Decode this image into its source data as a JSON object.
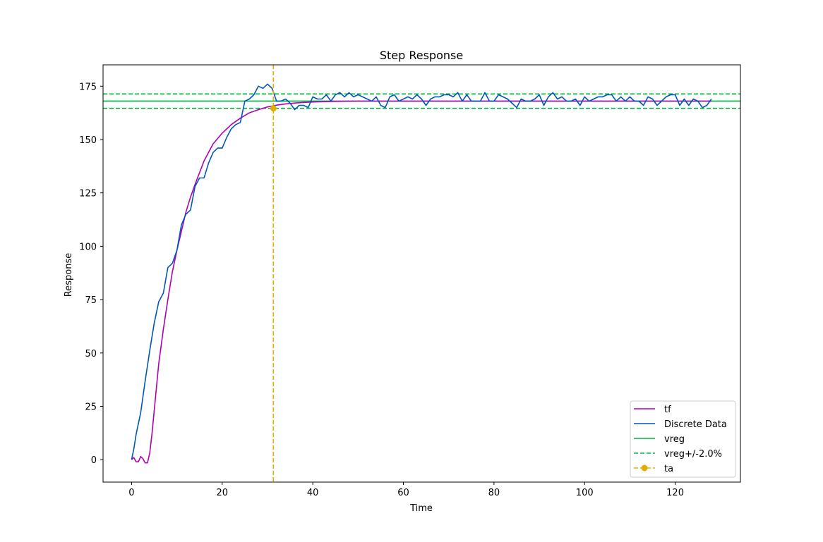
{
  "chart_data": {
    "type": "line",
    "title": "Step Response",
    "xlabel": "Time",
    "ylabel": "Response",
    "xlim": [
      -6.3,
      134.4
    ],
    "ylim": [
      -10.5,
      185
    ],
    "xticks": [
      0,
      20,
      40,
      60,
      80,
      100,
      120
    ],
    "yticks": [
      0,
      25,
      50,
      75,
      100,
      125,
      150,
      175
    ],
    "grid": false,
    "legend_placement": "lower-right",
    "series": [
      {
        "name": "tf",
        "style": "solid",
        "color": "#b000b5",
        "x": [
          0,
          0.5,
          1,
          1.5,
          2,
          2.5,
          3,
          3.5,
          4,
          4.5,
          5,
          5.5,
          6,
          7,
          8,
          9,
          10,
          11,
          12,
          13,
          14,
          16,
          18,
          20,
          22,
          24,
          26,
          28,
          30,
          32,
          34,
          36,
          38,
          40,
          45,
          50,
          55,
          60,
          70,
          80,
          90,
          100,
          110,
          120,
          128
        ],
        "y": [
          0,
          1,
          -1,
          -1,
          1.5,
          0.5,
          -1.5,
          -1.5,
          3,
          12,
          23,
          34,
          45,
          61,
          75,
          88,
          98,
          107,
          116,
          123,
          129,
          140,
          148,
          153,
          157,
          160,
          162.5,
          164,
          165.3,
          166.1,
          166.7,
          167.1,
          167.4,
          167.6,
          167.9,
          168,
          168,
          168,
          168,
          168,
          168,
          168,
          168,
          168,
          168
        ]
      },
      {
        "name": "Discrete Data",
        "style": "solid",
        "color": "#0057b8",
        "x": [
          0,
          0.5,
          1,
          2,
          3,
          4,
          5,
          6,
          7,
          8,
          9,
          10,
          11,
          12,
          13,
          14,
          15,
          16,
          17,
          18,
          19,
          20,
          21,
          22,
          23,
          24,
          25,
          26,
          27,
          28,
          29,
          30,
          31,
          32,
          33,
          34,
          35,
          36,
          37,
          38,
          39,
          40,
          41,
          42,
          43,
          44,
          45,
          46,
          47,
          48,
          49,
          50,
          51,
          52,
          53,
          54,
          55,
          56,
          57,
          58,
          59,
          60,
          61,
          62,
          63,
          64,
          65,
          66,
          67,
          68,
          69,
          70,
          71,
          72,
          73,
          74,
          75,
          76,
          77,
          78,
          79,
          80,
          81,
          82,
          83,
          84,
          85,
          86,
          87,
          88,
          89,
          90,
          91,
          92,
          93,
          94,
          95,
          96,
          97,
          98,
          99,
          100,
          101,
          102,
          103,
          104,
          105,
          106,
          107,
          108,
          109,
          110,
          111,
          112,
          113,
          114,
          115,
          116,
          117,
          118,
          119,
          120,
          121,
          122,
          123,
          124,
          125,
          126,
          127,
          128
        ],
        "y": [
          0,
          5,
          12,
          22,
          37,
          51,
          64,
          74,
          78,
          90,
          92,
          98,
          110,
          115,
          117,
          128,
          132,
          132,
          139,
          144,
          146,
          146,
          151,
          155,
          157,
          158,
          168,
          169,
          171,
          175,
          174,
          176,
          174,
          168,
          168,
          169,
          167,
          164,
          166,
          166,
          165,
          170,
          169,
          169,
          171,
          168,
          171,
          172,
          170,
          172,
          170,
          171,
          170,
          169,
          168,
          170,
          166,
          165,
          170,
          171,
          168,
          169,
          170,
          169,
          171,
          169,
          166,
          169,
          170,
          170,
          171,
          171,
          170,
          172,
          168,
          171,
          168,
          168,
          168,
          172,
          168,
          168,
          171,
          170,
          169,
          167,
          165,
          169,
          168,
          168,
          169,
          171,
          166,
          170,
          172,
          169,
          170,
          168,
          168,
          169,
          166,
          170,
          168,
          169,
          170,
          170,
          171,
          171,
          168,
          170,
          168,
          170,
          168,
          168,
          166,
          170,
          169,
          166,
          168,
          170,
          171,
          171,
          166,
          169,
          166,
          169,
          168,
          165,
          166,
          169
        ]
      },
      {
        "name": "vreg",
        "style": "solid",
        "color": "#00b140",
        "hline": 168
      },
      {
        "name": "vreg+/-2.0%",
        "style": "dashed",
        "color": "#00b140",
        "hlines": [
          171.36,
          164.64
        ]
      },
      {
        "name": "ta",
        "style": "dashed-marker",
        "color": "#e0b000",
        "vline": 31.3,
        "point": [
          31.3,
          164.64
        ]
      }
    ]
  },
  "legend": [
    "tf",
    "Discrete Data",
    "vreg",
    "vreg+/-2.0%",
    "ta"
  ]
}
